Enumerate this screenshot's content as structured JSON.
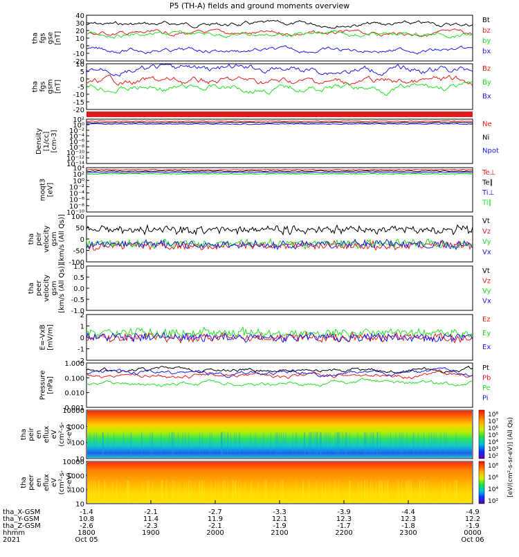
{
  "title": "P5 (TH-A) fields and ground moments overview",
  "year": "2021",
  "colors": {
    "black": "#000000",
    "red": "#e41a1a",
    "green": "#1ee01e",
    "blue": "#1a1aee"
  },
  "chart_data": [
    {
      "type": "line",
      "id": "fgs_gse",
      "ylabel": [
        "tha",
        "fgs",
        "gse",
        "[nT]"
      ],
      "ylim": [
        -20,
        40
      ],
      "yticks": [
        "40",
        "30",
        "20",
        "10",
        "0",
        "-10",
        "-20"
      ],
      "series": [
        {
          "name": "Bt",
          "color": "black",
          "level": 28
        },
        {
          "name": "bz",
          "color": "red",
          "level": 16
        },
        {
          "name": "by",
          "color": "green",
          "level": 15
        },
        {
          "name": "bx",
          "color": "blue",
          "level": -6
        }
      ]
    },
    {
      "type": "line",
      "id": "fgs_gsm",
      "ylabel": [
        "tha",
        "fgs",
        "gsm",
        "[nT]"
      ],
      "ylim": [
        -20,
        10
      ],
      "yticks": [
        "10",
        "5",
        "0",
        "-5",
        "-10",
        "-15",
        "-20"
      ],
      "series": [
        {
          "name": "Bz",
          "color": "red",
          "level": -2
        },
        {
          "name": "By",
          "color": "green",
          "level": -6
        },
        {
          "name": "Bx",
          "color": "blue",
          "level": 6
        }
      ]
    },
    {
      "type": "line",
      "id": "density",
      "ylabel": [
        "Density",
        "[1/cc]",
        "[cm-3]"
      ],
      "log": true,
      "yticks": [
        "10²",
        "10⁰",
        "10⁻²",
        "10⁻⁴",
        "10⁻⁶",
        "10⁻⁸",
        "10⁻¹⁰",
        "10⁻¹²",
        "10⁻¹⁴"
      ],
      "series": [
        {
          "name": "Ne",
          "color": "red"
        },
        {
          "name": "Ni",
          "color": "black"
        },
        {
          "name": "Npot",
          "color": "blue"
        }
      ]
    },
    {
      "type": "line",
      "id": "temperature",
      "ylabel": [
        "moqt3",
        "[eV]"
      ],
      "log": true,
      "yticks": [
        "10⁴",
        "10²",
        "10⁰",
        "10⁻²",
        "10⁻⁴",
        "10⁻⁶",
        "10⁻⁸",
        "10⁻¹⁰"
      ],
      "series": [
        {
          "name": "Te⊥",
          "color": "red"
        },
        {
          "name": "Te∥",
          "color": "black"
        },
        {
          "name": "Ti⊥",
          "color": "blue"
        },
        {
          "name": "Ti∥",
          "color": "green"
        }
      ]
    },
    {
      "type": "line",
      "id": "peir_velocity",
      "ylabel": [
        "tha",
        "peir",
        "velocity",
        "gsm",
        "[km/s (All Qs)]"
      ],
      "ylim": [
        -100,
        100
      ],
      "yticks": [
        "100",
        "50",
        "0",
        "-50",
        "-100"
      ],
      "series": [
        {
          "name": "Vt",
          "color": "black",
          "level": 40
        },
        {
          "name": "Vz",
          "color": "red",
          "level": -30
        },
        {
          "name": "Vy",
          "color": "green",
          "level": -20
        },
        {
          "name": "Vx",
          "color": "blue",
          "level": -25
        }
      ]
    },
    {
      "type": "line",
      "id": "peer_velocity",
      "ylabel": [
        "tha",
        "peer",
        "velocity",
        "gsm",
        "[km/s (All Qs)]"
      ],
      "ylim": [
        -1,
        1
      ],
      "yticks": [
        "1.0",
        "0.5",
        "0.0",
        "-0.5",
        "-1.0"
      ],
      "series": [
        {
          "name": "Vt",
          "color": "black"
        },
        {
          "name": "Vz",
          "color": "red"
        },
        {
          "name": "Vy",
          "color": "green"
        },
        {
          "name": "Vx",
          "color": "blue"
        }
      ]
    },
    {
      "type": "line",
      "id": "efield",
      "ylabel": [
        "E=-VxB",
        "[mV/m]"
      ],
      "ylim": [
        -2,
        2
      ],
      "yticks": [
        "2",
        "1",
        "0",
        "-1",
        "-2"
      ],
      "series": [
        {
          "name": "Ez",
          "color": "red",
          "level": 0
        },
        {
          "name": "Ey",
          "color": "green",
          "level": 0.4
        },
        {
          "name": "Ex",
          "color": "blue",
          "level": 0
        }
      ]
    },
    {
      "type": "line",
      "id": "pressure",
      "ylabel": [
        "Pressure",
        "[nPa]"
      ],
      "log": true,
      "yticks": [
        "1.000",
        "0.100",
        "0.010",
        "0.001"
      ],
      "series": [
        {
          "name": "Pt",
          "color": "black",
          "level": 0.35
        },
        {
          "name": "Pb",
          "color": "red",
          "level": 0.15
        },
        {
          "name": "Pe",
          "color": "green",
          "level": 0.04
        },
        {
          "name": "Pi",
          "color": "blue",
          "level": 0.2
        }
      ]
    },
    {
      "type": "heatmap",
      "id": "peir_spec",
      "ylabel": [
        "tha",
        "peir",
        "en",
        "eflux",
        "eV",
        "(cm²-s-",
        "sr-eV)"
      ],
      "yticks": [
        "10000",
        "1000",
        "100",
        "10"
      ],
      "colorbar": [
        "10⁸",
        "10⁷",
        "10⁶",
        "10⁵",
        "10⁴",
        "10³",
        "10²"
      ]
    },
    {
      "type": "heatmap",
      "id": "peer_spec",
      "ylabel": [
        "tha",
        "peer",
        "en",
        "eflux",
        "eV",
        "(cm²-s-",
        "sr-eV)"
      ],
      "yticks": [
        "10000",
        "1000",
        "100",
        "10"
      ],
      "colorbar": [
        "10⁸",
        "10⁶",
        "10⁴",
        "10²"
      ]
    }
  ],
  "colorbar_title": "[eV/(cm²-s-sr-eV)] (All Qs)",
  "xaxis": {
    "rows": [
      {
        "label": "tha_X-GSM",
        "values": [
          "-1.4",
          "-2.1",
          "-2.7",
          "-3.3",
          "-3.9",
          "-4.4",
          "-4.9"
        ]
      },
      {
        "label": "tha_Y-GSM",
        "values": [
          "10.8",
          "11.4",
          "11.9",
          "12.1",
          "12.3",
          "12.3",
          "12.2"
        ]
      },
      {
        "label": "tha_Z-GSM",
        "values": [
          "-2.6",
          "-2.3",
          "-2.1",
          "-1.9",
          "-1.7",
          "-1.8",
          "-1.9"
        ]
      },
      {
        "label": "hhmm",
        "values": [
          "1800",
          "1900",
          "2000",
          "2100",
          "2200",
          "2300",
          "0000"
        ]
      }
    ],
    "dates": [
      "Oct 05",
      "",
      "",
      "",
      "",
      "",
      "Oct 06"
    ]
  }
}
